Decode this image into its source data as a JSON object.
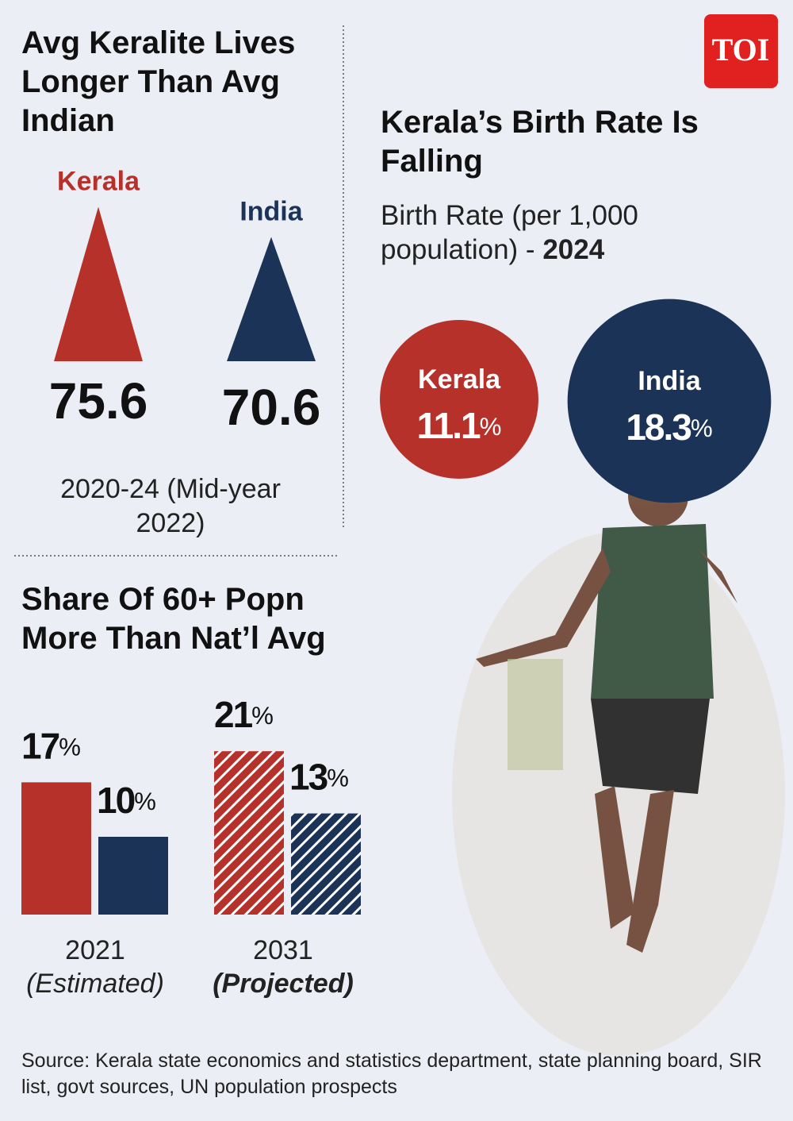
{
  "logo": "TOI",
  "chart_data": [
    {
      "type": "triangle",
      "title": "Avg Keralite Lives Longer Than Avg Indian",
      "categories": [
        "Kerala",
        "India"
      ],
      "values": [
        75.6,
        70.6
      ],
      "colors": [
        "#b7312b",
        "#1b3357"
      ],
      "note": "2020-24 (Mid-year 2022)"
    },
    {
      "type": "bubble",
      "title": "Kerala’s Birth Rate Is Falling",
      "subtitle": "Birth Rate (per 1,000 population) -",
      "year": "2024",
      "categories": [
        "Kerala",
        "India"
      ],
      "values": [
        11.1,
        18.3
      ],
      "unit": "%",
      "colors": [
        "#b7312b",
        "#1b3357"
      ]
    },
    {
      "type": "bar",
      "title": "Share Of 60+ Popn More Than Nat’l Avg",
      "categories": [
        "2021",
        "2031"
      ],
      "notes": [
        "(Estimated)",
        "(Projected)"
      ],
      "hatched": [
        false,
        true
      ],
      "unit": "%",
      "series": [
        {
          "color": "#b7312b",
          "values": [
            17,
            21
          ]
        },
        {
          "color": "#1b3357",
          "values": [
            10,
            13
          ]
        }
      ]
    }
  ],
  "source": "Source: Kerala state economics and statistics department, state planning board, SIR list, govt sources, UN population prospects"
}
